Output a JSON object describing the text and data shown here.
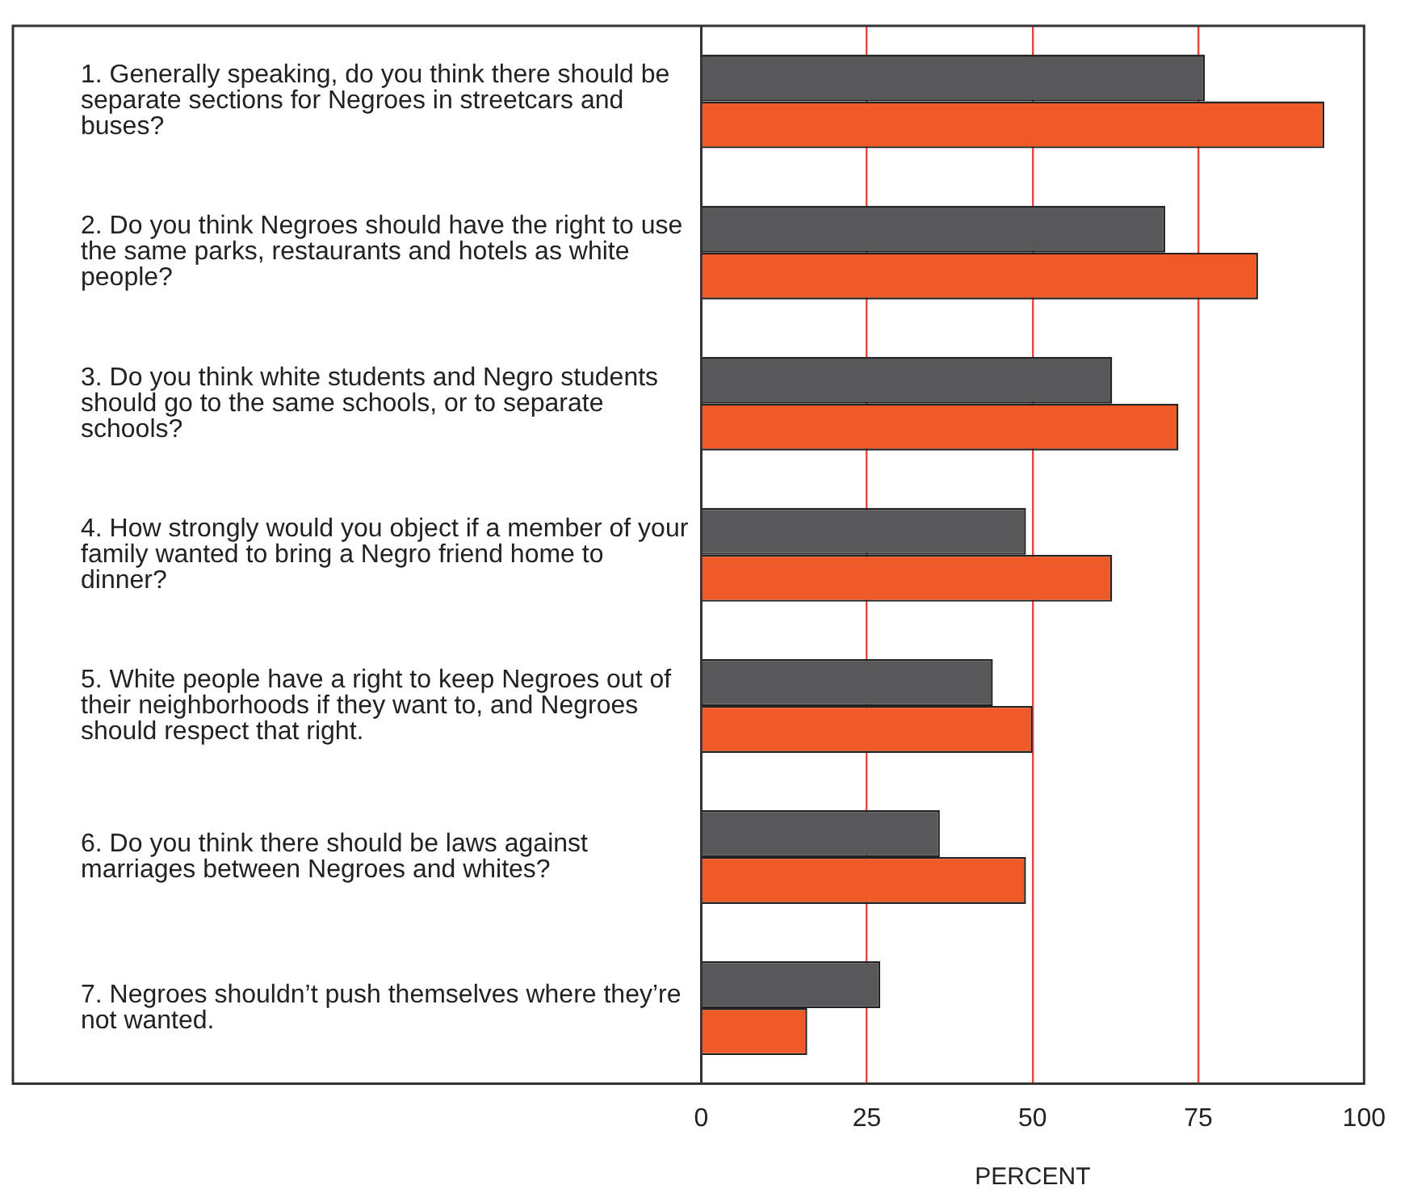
{
  "chart_data": {
    "type": "bar",
    "orientation": "horizontal",
    "categories": [
      "1. Generally speaking, do you think there should be separate sections for Negroes in streetcars and buses?",
      "2. Do you think Negroes should have the right to use the same parks, restaurants and hotels as white people?",
      "3. Do you think white students and Negro students should go to the same schools, or to separate schools?",
      "4. How strongly would you object if a member of your family wanted to bring a Negro friend home to dinner?",
      "5. White people have a right to keep Negroes out of their neighborhoods if they want to, and Negroes should respect that right.",
      "6. Do you think there should be laws against marriages between Negroes and whites?",
      "7. Negroes shouldn’t push themselves where they’re not wanted."
    ],
    "series": [
      {
        "color": "#58585a",
        "values": [
          76,
          70,
          62,
          49,
          44,
          36,
          27
        ]
      },
      {
        "color": "#f05a28",
        "values": [
          94,
          84,
          72,
          62,
          50,
          49,
          16
        ]
      }
    ],
    "xlabel": "PERCENT",
    "xlim": [
      0,
      100
    ],
    "xticks": [
      0,
      25,
      50,
      75,
      100
    ],
    "grid": "x",
    "legend": false
  }
}
